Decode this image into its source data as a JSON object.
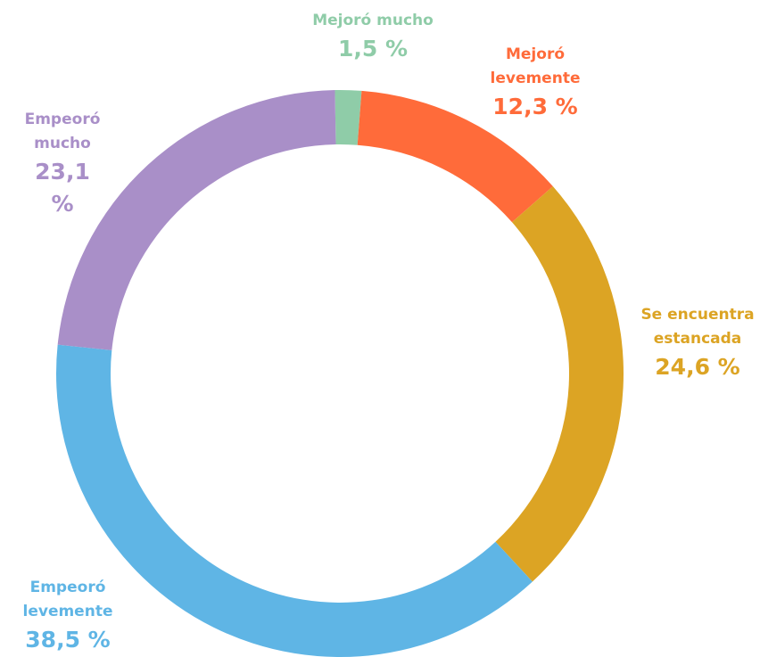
{
  "chart_data": {
    "type": "donut",
    "categories": [
      "Mejoró mucho",
      "Mejoró levemente",
      "Se encuentra estancada",
      "Empeoró levemente",
      "Empeoró mucho"
    ],
    "values": [
      1.5,
      12.3,
      24.6,
      38.5,
      23.1
    ],
    "value_labels": [
      "1,5 %",
      "12,3 %",
      "24,6 %",
      "38,5 %",
      "23,1 %"
    ],
    "colors": [
      "#8fcca8",
      "#ff6b3a",
      "#dca424",
      "#5fb5e5",
      "#a98fc8"
    ]
  }
}
